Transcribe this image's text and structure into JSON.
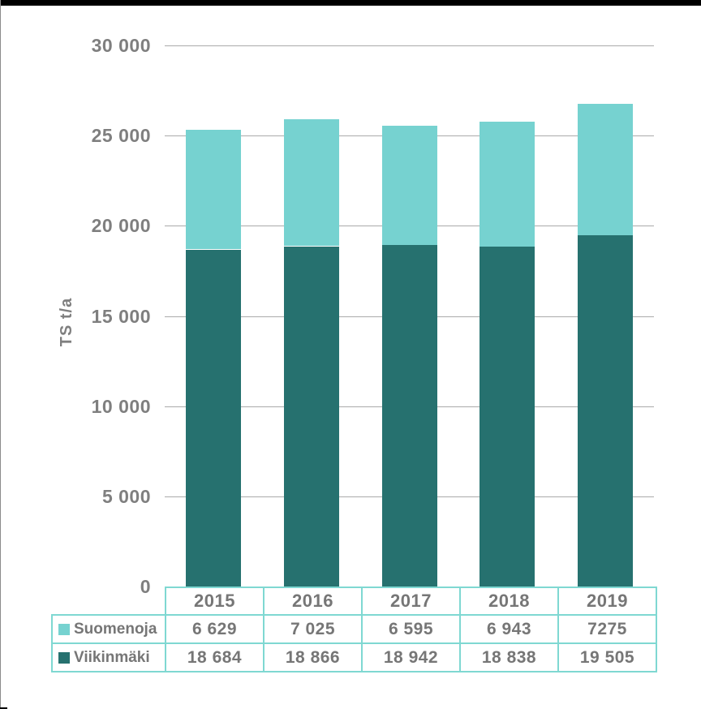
{
  "window": {
    "top_bar_color": "#000000",
    "left_edge_color": "#8c8c8c",
    "corner_mark_color": "#000000",
    "background": "#ffffff"
  },
  "axis": {
    "text_color": "#7f7f7f",
    "gridline_color": "#aaaaaa"
  },
  "table": {
    "border_color": "#7fd8d2",
    "text_color": "#767676"
  },
  "chart_data": {
    "type": "bar",
    "stacked": true,
    "title": "",
    "xlabel": "",
    "ylabel": "TS t/a",
    "ylim": [
      0,
      30000
    ],
    "ytick_step": 5000,
    "ytick_labels": [
      "0",
      "5 000",
      "10 000",
      "15 000",
      "20 000",
      "25 000",
      "30 000"
    ],
    "grid": true,
    "legend_position": "table-below-chart",
    "categories": [
      "2015",
      "2016",
      "2017",
      "2018",
      "2019"
    ],
    "series": [
      {
        "name": "Suomenoja",
        "color": "#76d2d0",
        "stack_position": "top",
        "values": [
          6629,
          7025,
          6595,
          6943,
          7275
        ],
        "labels": [
          "6 629",
          "7 025",
          "6 595",
          "6 943",
          "7275"
        ]
      },
      {
        "name": "Viikinmäki",
        "color": "#26716f",
        "stack_position": "bottom",
        "values": [
          18684,
          18866,
          18942,
          18838,
          19505
        ],
        "labels": [
          "18 684",
          "18 866",
          "18 942",
          "18 838",
          "19 505"
        ]
      }
    ]
  }
}
